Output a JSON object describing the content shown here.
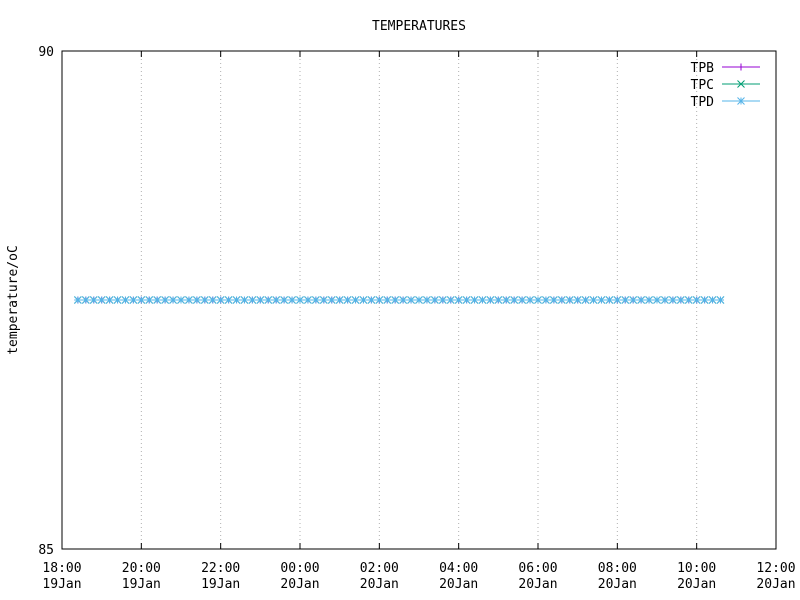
{
  "chart_data": {
    "type": "line",
    "title": "TEMPERATURES",
    "y_label": "temperature/oC",
    "x": [
      "19Jan 18:24",
      "19Jan 18:36",
      "19Jan 18:48",
      "19Jan 19:00",
      "19Jan 19:12",
      "19Jan 19:24",
      "19Jan 19:36",
      "19Jan 19:48",
      "19Jan 20:00",
      "19Jan 20:12",
      "19Jan 20:24",
      "19Jan 20:36",
      "19Jan 20:48",
      "19Jan 21:00",
      "19Jan 21:12",
      "19Jan 21:24",
      "19Jan 21:36",
      "19Jan 21:48",
      "19Jan 22:00",
      "19Jan 22:12",
      "19Jan 22:24",
      "19Jan 22:36",
      "19Jan 22:48",
      "19Jan 23:00",
      "19Jan 23:12",
      "19Jan 23:24",
      "19Jan 23:36",
      "19Jan 23:48",
      "20Jan 00:00",
      "20Jan 00:12",
      "20Jan 00:24",
      "20Jan 00:36",
      "20Jan 00:48",
      "20Jan 01:00",
      "20Jan 01:12",
      "20Jan 01:24",
      "20Jan 01:36",
      "20Jan 01:48",
      "20Jan 02:00",
      "20Jan 02:12",
      "20Jan 02:24",
      "20Jan 02:36",
      "20Jan 02:48",
      "20Jan 03:00",
      "20Jan 03:12",
      "20Jan 03:24",
      "20Jan 03:36",
      "20Jan 03:48",
      "20Jan 04:00",
      "20Jan 04:12",
      "20Jan 04:24",
      "20Jan 04:36",
      "20Jan 04:48",
      "20Jan 05:00",
      "20Jan 05:12",
      "20Jan 05:24",
      "20Jan 05:36",
      "20Jan 05:48",
      "20Jan 06:00",
      "20Jan 06:12",
      "20Jan 06:24",
      "20Jan 06:36",
      "20Jan 06:48",
      "20Jan 07:00",
      "20Jan 07:12",
      "20Jan 07:24",
      "20Jan 07:36",
      "20Jan 07:48",
      "20Jan 08:00",
      "20Jan 08:12",
      "20Jan 08:24",
      "20Jan 08:36",
      "20Jan 08:48",
      "20Jan 09:00",
      "20Jan 09:12",
      "20Jan 09:24",
      "20Jan 09:36",
      "20Jan 09:48",
      "20Jan 10:00",
      "20Jan 10:12",
      "20Jan 10:24",
      "20Jan 10:36"
    ],
    "series": [
      {
        "name": "TPB",
        "color": "#9400d3",
        "marker": "plus",
        "values": [
          87.5,
          87.5,
          87.5,
          87.5,
          87.5,
          87.5,
          87.5,
          87.5,
          87.5,
          87.5,
          87.5,
          87.5,
          87.5,
          87.5,
          87.5,
          87.5,
          87.5,
          87.5,
          87.5,
          87.5,
          87.5,
          87.5,
          87.5,
          87.5,
          87.5,
          87.5,
          87.5,
          87.5,
          87.5,
          87.5,
          87.5,
          87.5,
          87.5,
          87.5,
          87.5,
          87.5,
          87.5,
          87.5,
          87.5,
          87.5,
          87.5,
          87.5,
          87.5,
          87.5,
          87.5,
          87.5,
          87.5,
          87.5,
          87.5,
          87.5,
          87.5,
          87.5,
          87.5,
          87.5,
          87.5,
          87.5,
          87.5,
          87.5,
          87.5,
          87.5,
          87.5,
          87.5,
          87.5,
          87.5,
          87.5,
          87.5,
          87.5,
          87.5,
          87.5,
          87.5,
          87.5,
          87.5,
          87.5,
          87.5,
          87.5,
          87.5,
          87.5,
          87.5,
          87.5,
          87.5,
          87.5,
          87.5
        ]
      },
      {
        "name": "TPC",
        "color": "#009e73",
        "marker": "cross",
        "values": [
          87.5,
          87.5,
          87.5,
          87.5,
          87.5,
          87.5,
          87.5,
          87.5,
          87.5,
          87.5,
          87.5,
          87.5,
          87.5,
          87.5,
          87.5,
          87.5,
          87.5,
          87.5,
          87.5,
          87.5,
          87.5,
          87.5,
          87.5,
          87.5,
          87.5,
          87.5,
          87.5,
          87.5,
          87.5,
          87.5,
          87.5,
          87.5,
          87.5,
          87.5,
          87.5,
          87.5,
          87.5,
          87.5,
          87.5,
          87.5,
          87.5,
          87.5,
          87.5,
          87.5,
          87.5,
          87.5,
          87.5,
          87.5,
          87.5,
          87.5,
          87.5,
          87.5,
          87.5,
          87.5,
          87.5,
          87.5,
          87.5,
          87.5,
          87.5,
          87.5,
          87.5,
          87.5,
          87.5,
          87.5,
          87.5,
          87.5,
          87.5,
          87.5,
          87.5,
          87.5,
          87.5,
          87.5,
          87.5,
          87.5,
          87.5,
          87.5,
          87.5,
          87.5,
          87.5,
          87.5,
          87.5,
          87.5
        ]
      },
      {
        "name": "TPD",
        "color": "#56b4e9",
        "marker": "star",
        "values": [
          87.5,
          87.5,
          87.5,
          87.5,
          87.5,
          87.5,
          87.5,
          87.5,
          87.5,
          87.5,
          87.5,
          87.5,
          87.5,
          87.5,
          87.5,
          87.5,
          87.5,
          87.5,
          87.5,
          87.5,
          87.5,
          87.5,
          87.5,
          87.5,
          87.5,
          87.5,
          87.5,
          87.5,
          87.5,
          87.5,
          87.5,
          87.5,
          87.5,
          87.5,
          87.5,
          87.5,
          87.5,
          87.5,
          87.5,
          87.5,
          87.5,
          87.5,
          87.5,
          87.5,
          87.5,
          87.5,
          87.5,
          87.5,
          87.5,
          87.5,
          87.5,
          87.5,
          87.5,
          87.5,
          87.5,
          87.5,
          87.5,
          87.5,
          87.5,
          87.5,
          87.5,
          87.5,
          87.5,
          87.5,
          87.5,
          87.5,
          87.5,
          87.5,
          87.5,
          87.5,
          87.5,
          87.5,
          87.5,
          87.5,
          87.5,
          87.5,
          87.5,
          87.5,
          87.5,
          87.5,
          87.5,
          87.5
        ]
      }
    ],
    "xlim": [
      "19Jan 18:00",
      "20Jan 12:00"
    ],
    "xticks": [
      {
        "value": "19Jan 18:00",
        "label": "18:00\n19Jan"
      },
      {
        "value": "19Jan 20:00",
        "label": "20:00\n19Jan"
      },
      {
        "value": "19Jan 22:00",
        "label": "22:00\n19Jan"
      },
      {
        "value": "20Jan 00:00",
        "label": "00:00\n20Jan"
      },
      {
        "value": "20Jan 02:00",
        "label": "02:00\n20Jan"
      },
      {
        "value": "20Jan 04:00",
        "label": "04:00\n20Jan"
      },
      {
        "value": "20Jan 06:00",
        "label": "06:00\n20Jan"
      },
      {
        "value": "20Jan 08:00",
        "label": "08:00\n20Jan"
      },
      {
        "value": "20Jan 10:00",
        "label": "10:00\n20Jan"
      },
      {
        "value": "20Jan 12:00",
        "label": "12:00\n20Jan"
      }
    ],
    "ylim": [
      85,
      90
    ],
    "yticks": [
      85,
      90
    ],
    "grid": "x",
    "legend": "top-right"
  }
}
